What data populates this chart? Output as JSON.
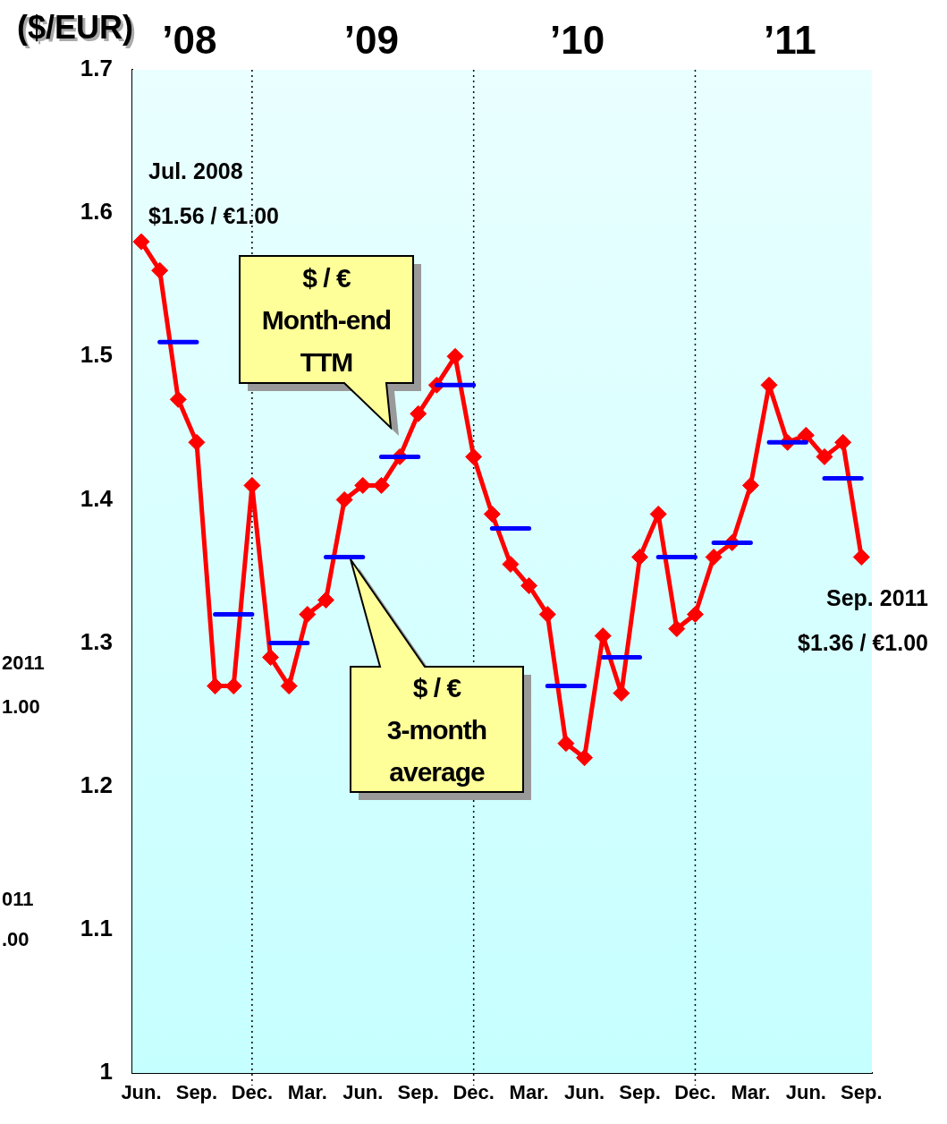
{
  "chart_data": {
    "type": "line",
    "ylabel": "($/EUR)",
    "x": [
      "2008-06",
      "2008-07",
      "2008-08",
      "2008-09",
      "2008-10",
      "2008-11",
      "2008-12",
      "2009-01",
      "2009-02",
      "2009-03",
      "2009-04",
      "2009-05",
      "2009-06",
      "2009-07",
      "2009-08",
      "2009-09",
      "2009-10",
      "2009-11",
      "2009-12",
      "2010-01",
      "2010-02",
      "2010-03",
      "2010-04",
      "2010-05",
      "2010-06",
      "2010-07",
      "2010-08",
      "2010-09",
      "2010-10",
      "2010-11",
      "2010-12",
      "2011-01",
      "2011-02",
      "2011-03",
      "2011-04",
      "2011-05",
      "2011-06",
      "2011-07",
      "2011-08",
      "2011-09"
    ],
    "series": [
      {
        "name": "$ / € Month-end TTM",
        "type": "line",
        "color": "#ff0000",
        "marker": "diamond",
        "values": [
          1.58,
          1.56,
          1.47,
          1.44,
          1.27,
          1.27,
          1.41,
          1.29,
          1.27,
          1.32,
          1.33,
          1.4,
          1.41,
          1.41,
          1.43,
          1.46,
          1.48,
          1.5,
          1.43,
          1.39,
          1.355,
          1.34,
          1.32,
          1.23,
          1.22,
          1.305,
          1.265,
          1.36,
          1.39,
          1.31,
          1.32,
          1.36,
          1.37,
          1.41,
          1.48,
          1.44,
          1.445,
          1.43,
          1.44,
          1.36
        ]
      },
      {
        "name": "$ / € 3-month average",
        "type": "line",
        "color": "#0000ff",
        "marker": "none",
        "x": [
          "2008-07",
          "2008-09",
          "2008-09-20",
          "2008-10",
          "2008-12",
          "2008-12-20",
          "2009-01",
          "2009-03",
          "2009-03-20",
          "2009-04",
          "2009-06",
          "2009-06-20",
          "2009-07",
          "2009-09",
          "2009-09-20",
          "2009-10",
          "2009-12",
          "2009-12-20",
          "2010-01",
          "2010-03",
          "2010-03-20",
          "2010-04",
          "2010-06",
          "2010-06-20",
          "2010-07",
          "2010-09",
          "2010-09-20",
          "2010-10",
          "2010-12",
          "2010-12-20",
          "2011-01",
          "2011-03",
          "2011-03-20",
          "2011-04",
          "2011-06",
          "2011-06-20",
          "2011-07",
          "2011-09"
        ],
        "values": [
          1.51,
          1.51,
          null,
          1.32,
          1.32,
          null,
          1.3,
          1.3,
          null,
          1.36,
          1.36,
          null,
          1.43,
          1.43,
          null,
          1.48,
          1.48,
          null,
          1.38,
          1.38,
          null,
          1.27,
          1.27,
          null,
          1.29,
          1.29,
          null,
          1.36,
          1.36,
          null,
          1.37,
          1.37,
          null,
          1.44,
          1.44,
          null,
          1.415,
          1.415
        ]
      }
    ],
    "xlim": [
      "2008-05-17",
      "2011-09-18"
    ],
    "xticks": [
      {
        "value": "2008-06",
        "label": "Jun."
      },
      {
        "value": "2008-09",
        "label": "Sep."
      },
      {
        "value": "2008-12",
        "label": "Dec."
      },
      {
        "value": "2009-03",
        "label": "Mar."
      },
      {
        "value": "2009-06",
        "label": "Jun."
      },
      {
        "value": "2009-09",
        "label": "Sep."
      },
      {
        "value": "2009-12",
        "label": "Dec."
      },
      {
        "value": "2010-03",
        "label": "Mar."
      },
      {
        "value": "2010-06",
        "label": "Jun."
      },
      {
        "value": "2010-09",
        "label": "Sep."
      },
      {
        "value": "2010-12",
        "label": "Dec."
      },
      {
        "value": "2011-03",
        "label": "Mar."
      },
      {
        "value": "2011-06",
        "label": "Jun."
      },
      {
        "value": "2011-09",
        "label": "Sep."
      }
    ],
    "x2lim": [
      "2008-05-17",
      "2011-09-18"
    ],
    "x2ticks": [
      {
        "value": "2008-08-20",
        "label": "’08"
      },
      {
        "value": "2009-06-15",
        "label": "’09"
      },
      {
        "value": "2010-05-20",
        "label": "’10"
      },
      {
        "value": "2011-05-05",
        "label": "’11"
      }
    ],
    "ylim": [
      1,
      1.7
    ],
    "yticks": [
      1,
      1.1,
      1.2,
      1.3,
      1.4,
      1.5,
      1.6,
      1.7
    ],
    "ref_lines": [
      {
        "axis": "x",
        "value": "2008-12",
        "line_style": "dotted",
        "color": "#000000"
      },
      {
        "axis": "x",
        "value": "2009-12",
        "line_style": "dotted",
        "color": "#000000"
      },
      {
        "axis": "x",
        "value": "2010-12",
        "line_style": "dotted",
        "color": "#000000"
      }
    ],
    "legend": false,
    "annotations": [
      "Jul. 2008",
      "$1.56 / €1.00",
      "Sep. 2011",
      "$1.36 / €1.00",
      "2011",
      "1.00",
      "011",
      ".00"
    ]
  }
}
